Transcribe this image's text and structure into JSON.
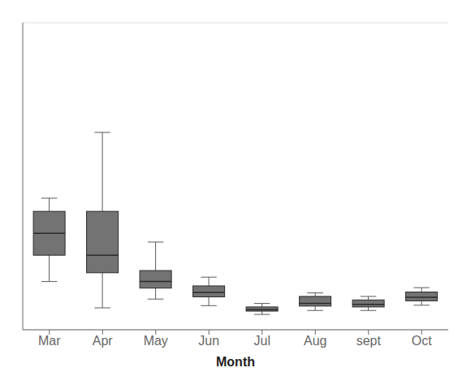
{
  "chart_data": {
    "type": "box",
    "xlabel": "Month",
    "categories": [
      "Mar",
      "Apr",
      "May",
      "Jun",
      "Jul",
      "Aug",
      "sept",
      "Oct"
    ],
    "boxes": [
      {
        "whislo": 2.2,
        "q1": 3.4,
        "med": 4.4,
        "q3": 5.4,
        "whishi": 6.0
      },
      {
        "whislo": 1.0,
        "q1": 2.6,
        "med": 3.4,
        "q3": 5.4,
        "whishi": 9.0
      },
      {
        "whislo": 1.4,
        "q1": 1.9,
        "med": 2.2,
        "q3": 2.7,
        "whishi": 4.0
      },
      {
        "whislo": 1.1,
        "q1": 1.5,
        "med": 1.7,
        "q3": 2.0,
        "whishi": 2.4
      },
      {
        "whislo": 0.7,
        "q1": 0.85,
        "med": 0.92,
        "q3": 1.04,
        "whishi": 1.2
      },
      {
        "whislo": 0.88,
        "q1": 1.08,
        "med": 1.2,
        "q3": 1.52,
        "whishi": 1.68
      },
      {
        "whislo": 0.88,
        "q1": 1.04,
        "med": 1.16,
        "q3": 1.36,
        "whishi": 1.52
      },
      {
        "whislo": 1.12,
        "q1": 1.32,
        "med": 1.48,
        "q3": 1.72,
        "whishi": 1.92
      }
    ],
    "color": "#737373",
    "ylim": [
      0,
      14
    ],
    "yticks": [
      0,
      2,
      4,
      6,
      8,
      10,
      12,
      14
    ],
    "grid": true,
    "tick_labels": "x"
  }
}
